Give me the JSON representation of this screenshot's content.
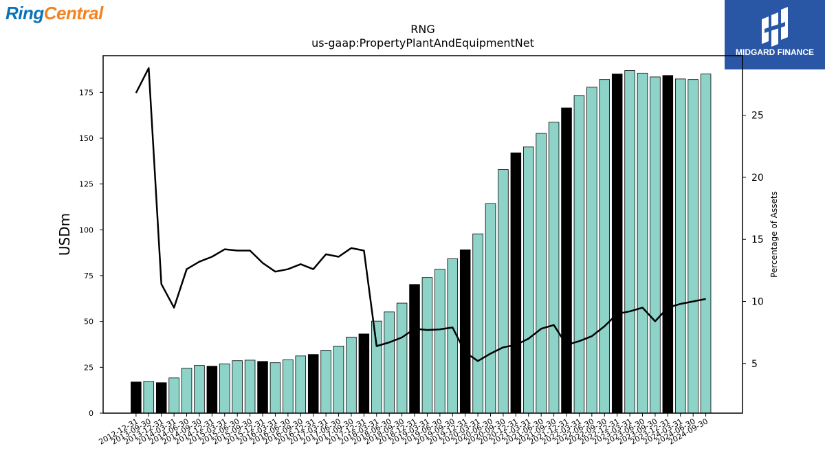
{
  "logos": {
    "left_text_a": "Ring",
    "left_text_b": "Central",
    "right_text": "MIDGARD FINANCE",
    "colors": {
      "ring": "#0a73b8",
      "central": "#f58220",
      "midgard_bg": "#2a57a5"
    }
  },
  "chart_data": {
    "type": "bar",
    "title": "RNG",
    "subtitle": "us-gaap:PropertyPlantAndEquipmentNet",
    "ylabel": "USDm",
    "y2label": "Percentage of Assets",
    "ylim": [
      0,
      195
    ],
    "y2lim": [
      1,
      29.8
    ],
    "yticks": [
      "0",
      "25",
      "50",
      "75",
      "100",
      "125",
      "150",
      "175"
    ],
    "y2ticks": [
      "5",
      "10",
      "15",
      "20",
      "25"
    ],
    "categories": [
      "2012-12-31",
      "2013-09-30",
      "2013-12-31",
      "2014-03-31",
      "2014-06-30",
      "2014-09-30",
      "2014-12-31",
      "2015-03-31",
      "2015-06-30",
      "2015-09-30",
      "2015-12-31",
      "2016-03-31",
      "2016-06-30",
      "2016-09-30",
      "2016-12-31",
      "2017-03-31",
      "2017-06-30",
      "2017-09-30",
      "2017-12-31",
      "2018-03-31",
      "2018-06-30",
      "2018-09-30",
      "2018-12-31",
      "2019-03-31",
      "2019-06-30",
      "2019-09-30",
      "2019-12-31",
      "2020-03-31",
      "2020-06-30",
      "2020-09-30",
      "2020-12-31",
      "2021-03-31",
      "2021-06-30",
      "2021-09-30",
      "2021-12-31",
      "2022-03-31",
      "2022-06-30",
      "2022-09-30",
      "2022-12-31",
      "2023-03-31",
      "2023-06-30",
      "2023-09-30",
      "2023-12-31",
      "2024-03-31",
      "2024-06-30",
      "2024-09-30"
    ],
    "series": [
      {
        "kind": "bar",
        "values": [
          17.0,
          17.3,
          16.6,
          19.2,
          24.5,
          26.0,
          25.6,
          26.9,
          28.6,
          28.9,
          28.2,
          27.5,
          29.1,
          31.2,
          32.0,
          34.3,
          36.6,
          41.5,
          43.2,
          50.2,
          55.2,
          60.0,
          70.2,
          74.0,
          78.5,
          84.2,
          89.1,
          97.8,
          114.3,
          132.9,
          142.0,
          145.2,
          152.6,
          158.7,
          166.5,
          173.3,
          177.8,
          182.0,
          185.0,
          186.9,
          185.5,
          183.4,
          184.2,
          182.3,
          182.0,
          185.0
        ],
        "year_end_flags": [
          1,
          0,
          1,
          0,
          0,
          0,
          1,
          0,
          0,
          0,
          1,
          0,
          0,
          0,
          1,
          0,
          0,
          0,
          1,
          0,
          0,
          0,
          1,
          0,
          0,
          0,
          1,
          0,
          0,
          0,
          1,
          0,
          0,
          0,
          1,
          0,
          0,
          0,
          1,
          0,
          0,
          0,
          1,
          0,
          0,
          0
        ],
        "colors": {
          "quarter": "#8dd3c7",
          "year_end": "#000000"
        }
      },
      {
        "kind": "line",
        "axis": "secondary",
        "color": "#000000",
        "values": [
          26.8,
          28.8,
          11.4,
          9.5,
          12.6,
          13.2,
          13.6,
          14.2,
          14.1,
          14.1,
          13.1,
          12.4,
          12.6,
          13.0,
          12.6,
          13.8,
          13.6,
          14.3,
          14.1,
          6.4,
          6.7,
          7.1,
          7.8,
          7.7,
          7.75,
          7.9,
          5.9,
          5.2,
          5.8,
          6.3,
          6.5,
          7.0,
          7.8,
          8.1,
          6.5,
          6.8,
          7.2,
          8.0,
          9.0,
          9.2,
          9.5,
          8.4,
          9.5,
          9.8,
          10.0,
          10.2
        ]
      }
    ]
  }
}
